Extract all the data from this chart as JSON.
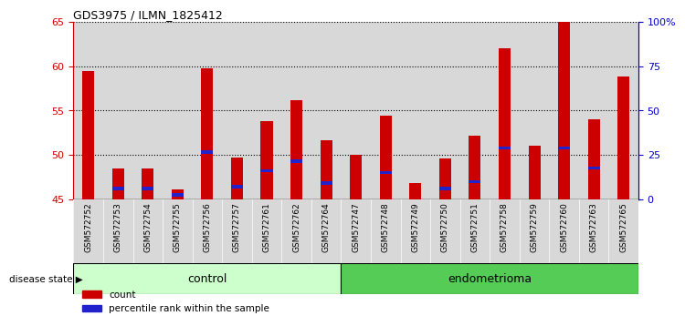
{
  "title": "GDS3975 / ILMN_1825412",
  "samples": [
    "GSM572752",
    "GSM572753",
    "GSM572754",
    "GSM572755",
    "GSM572756",
    "GSM572757",
    "GSM572761",
    "GSM572762",
    "GSM572764",
    "GSM572747",
    "GSM572748",
    "GSM572749",
    "GSM572750",
    "GSM572751",
    "GSM572758",
    "GSM572759",
    "GSM572760",
    "GSM572763",
    "GSM572765"
  ],
  "counts": [
    59.5,
    48.5,
    48.5,
    46.1,
    59.8,
    49.7,
    53.8,
    56.2,
    51.6,
    50.0,
    54.4,
    46.8,
    49.6,
    52.2,
    62.0,
    51.0,
    65.0,
    54.0,
    58.8
  ],
  "percentile_pos": [
    45.0,
    46.2,
    46.2,
    45.5,
    50.3,
    46.4,
    48.2,
    49.3,
    46.8,
    45.0,
    48.0,
    45.0,
    46.2,
    47.0,
    50.8,
    45.0,
    50.8,
    48.5,
    45.0
  ],
  "percentile_show": [
    false,
    true,
    true,
    true,
    true,
    true,
    true,
    true,
    true,
    false,
    true,
    false,
    true,
    true,
    true,
    false,
    true,
    true,
    false
  ],
  "groups": [
    "control",
    "control",
    "control",
    "control",
    "control",
    "control",
    "control",
    "control",
    "control",
    "endometrioma",
    "endometrioma",
    "endometrioma",
    "endometrioma",
    "endometrioma",
    "endometrioma",
    "endometrioma",
    "endometrioma",
    "endometrioma",
    "endometrioma"
  ],
  "ymin": 45,
  "ymax": 65,
  "yticks": [
    45,
    50,
    55,
    60,
    65
  ],
  "right_yticks": [
    0,
    25,
    50,
    75,
    100
  ],
  "bar_color": "#cc0000",
  "blue_color": "#2222cc",
  "control_color": "#ccffcc",
  "endometrioma_color": "#55cc55",
  "col_bg_color": "#d8d8d8",
  "left_tick_color": "#cc0000",
  "right_tick_color": "#0000cc"
}
